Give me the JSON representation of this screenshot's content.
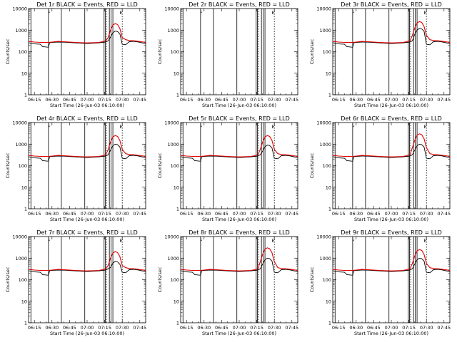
{
  "chart_data": {
    "type": "line",
    "title_pattern": "Det {det} BLACK = Events, RED = LLD",
    "xlabel": "Start Time (26-Jun-03 06:10:00)",
    "ylabel": "Counts/sec",
    "yscale": "log",
    "ylim": [
      1,
      10000
    ],
    "yticks": [
      "1",
      "10",
      "100",
      "1000",
      "10000"
    ],
    "xlim_minutes": [
      0,
      100
    ],
    "xticks": [
      {
        "m": 5,
        "label": "06:15"
      },
      {
        "m": 20,
        "label": "06:30"
      },
      {
        "m": 35,
        "label": "06:45"
      },
      {
        "m": 50,
        "label": "07:00"
      },
      {
        "m": 65,
        "label": "07:15"
      },
      {
        "m": 80,
        "label": "07:30"
      },
      {
        "m": 95,
        "label": "07:45"
      }
    ],
    "markers": {
      "solid_minutes": [
        2,
        17,
        28,
        48,
        64.5,
        65.5,
        69,
        70.5,
        72
      ],
      "dotted_minutes": [
        66.5,
        80
      ],
      "flag_labels": [
        {
          "m": 17.5,
          "label": "F"
        },
        {
          "m": 79,
          "label": "E"
        }
      ]
    },
    "panels": [
      {
        "det": "1r",
        "has_data": true,
        "peak_events": 900,
        "peak_lld": 2000
      },
      {
        "det": "2r",
        "has_data": false
      },
      {
        "det": "3r",
        "has_data": true,
        "peak_events": 1200,
        "peak_lld": 2500
      },
      {
        "det": "4r",
        "has_data": true,
        "peak_events": 1000,
        "peak_lld": 2500
      },
      {
        "det": "5r",
        "has_data": true,
        "peak_events": 900,
        "peak_lld": 2500
      },
      {
        "det": "6r",
        "has_data": true,
        "peak_events": 1000,
        "peak_lld": 3000
      },
      {
        "det": "7r",
        "has_data": true,
        "peak_events": 700,
        "peak_lld": 2000
      },
      {
        "det": "8r",
        "has_data": true,
        "peak_events": 1000,
        "peak_lld": 3000
      },
      {
        "det": "9r",
        "has_data": true,
        "peak_events": 1000,
        "peak_lld": 2500
      }
    ],
    "series": [
      {
        "name": "Events",
        "color": "#000000",
        "x": [
          0,
          5,
          10,
          12,
          17,
          18,
          20,
          25,
          30,
          35,
          40,
          45,
          50,
          55,
          60,
          63,
          66,
          68,
          70,
          72,
          74,
          76,
          78,
          80,
          83,
          86,
          90,
          94,
          98,
          100
        ],
        "y": [
          260,
          230,
          220,
          170,
          160,
          260,
          270,
          280,
          275,
          265,
          255,
          245,
          240,
          245,
          255,
          270,
          280,
          320,
          500,
          800,
          950,
          900,
          700,
          220,
          210,
          290,
          300,
          280,
          250,
          230
        ]
      },
      {
        "name": "LLD",
        "color": "#e00000",
        "x": [
          0,
          5,
          10,
          17,
          20,
          25,
          30,
          35,
          40,
          45,
          50,
          55,
          60,
          63,
          66,
          68,
          70,
          72,
          74,
          76,
          78,
          80,
          83,
          86,
          90,
          94,
          98,
          100
        ],
        "y": [
          300,
          280,
          270,
          270,
          280,
          300,
          290,
          280,
          270,
          260,
          255,
          260,
          270,
          290,
          320,
          500,
          1100,
          1900,
          2200,
          2000,
          1300,
          500,
          360,
          330,
          320,
          300,
          280,
          260
        ]
      }
    ]
  }
}
